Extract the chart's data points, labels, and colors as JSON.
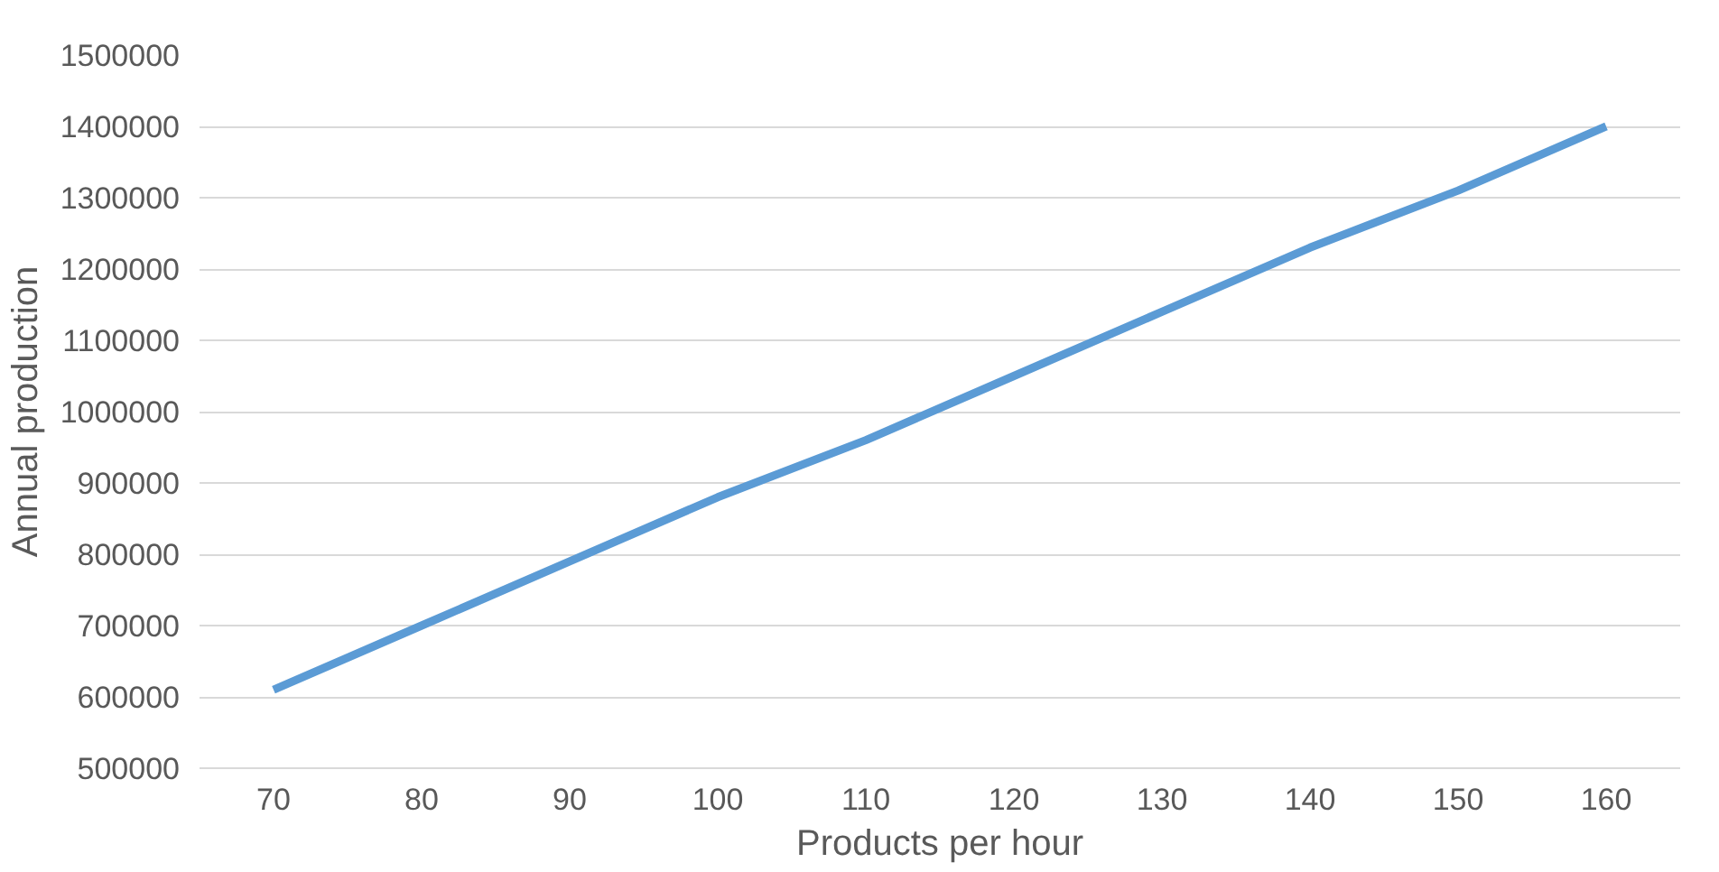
{
  "chart_data": {
    "type": "line",
    "xlabel": "Products per hour",
    "ylabel": "Annual production",
    "categories": [
      "70",
      "80",
      "90",
      "100",
      "110",
      "120",
      "130",
      "140",
      "150",
      "160"
    ],
    "series": [
      {
        "color": "#5b9bd5",
        "values": [
          610000,
          700000,
          790000,
          880000,
          960000,
          1050000,
          1140000,
          1230000,
          1310000,
          1400000
        ]
      }
    ],
    "ylim": [
      500000,
      1500000
    ],
    "yticks": [
      500000,
      600000,
      700000,
      800000,
      900000,
      1000000,
      1100000,
      1200000,
      1300000,
      1400000,
      1500000
    ],
    "grid": "y",
    "marker": "none",
    "line_style": "solid"
  }
}
